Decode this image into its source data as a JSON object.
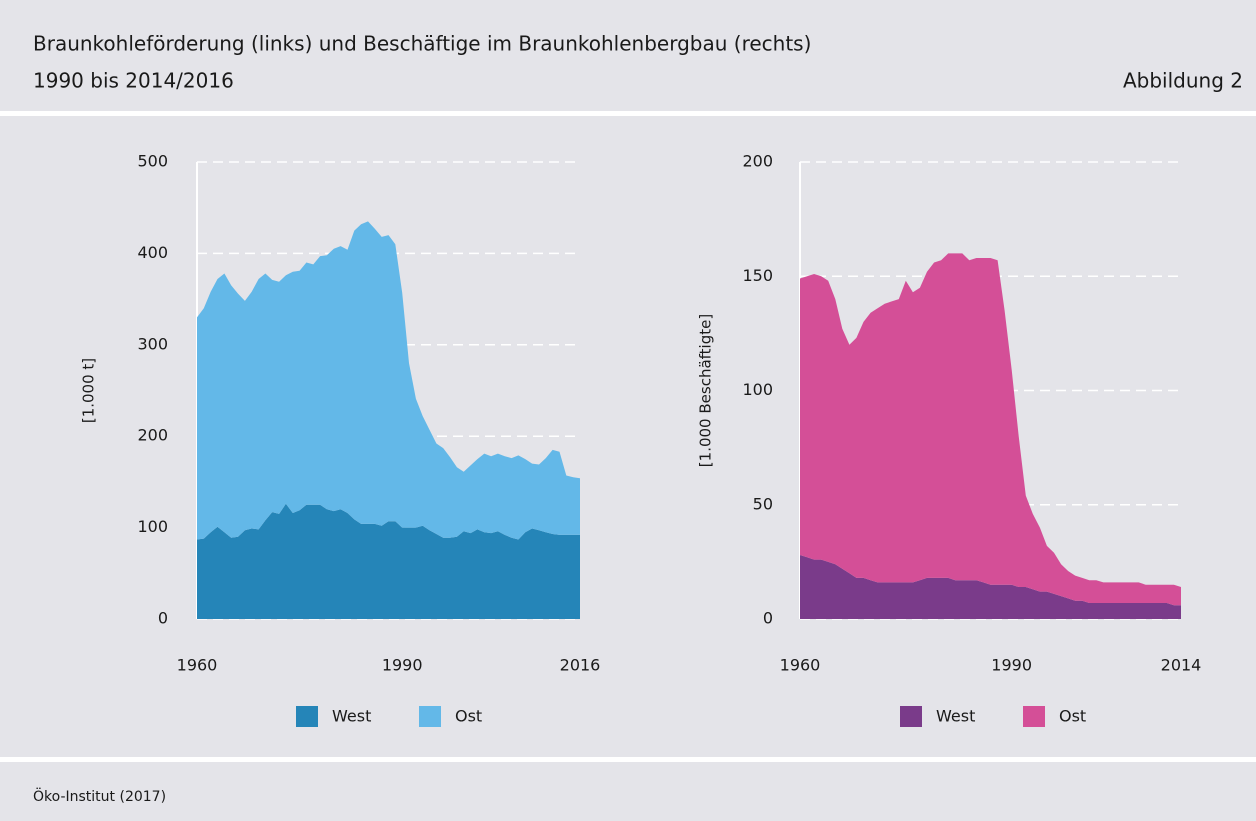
{
  "header": {
    "title": "Braunkohleförderung (links) und Beschäftige im Braunkohlenbergbau (rechts)",
    "subtitle": "1990 bis 2014/2016",
    "figure": "Abbildung 2"
  },
  "chart_data": [
    {
      "type": "stacked-area",
      "ylabel": "[1.000 t]",
      "x": [
        1960,
        1961,
        1962,
        1963,
        1964,
        1965,
        1966,
        1967,
        1968,
        1969,
        1970,
        1971,
        1972,
        1973,
        1974,
        1975,
        1976,
        1977,
        1978,
        1979,
        1980,
        1981,
        1982,
        1983,
        1984,
        1985,
        1986,
        1987,
        1988,
        1989,
        1990,
        1991,
        1992,
        1993,
        1994,
        1995,
        1996,
        1997,
        1998,
        1999,
        2000,
        2001,
        2002,
        2003,
        2004,
        2005,
        2006,
        2007,
        2008,
        2009,
        2010,
        2011,
        2012,
        2013,
        2014,
        2015,
        2016
      ],
      "series": [
        {
          "name": "West",
          "color": "#2585b8",
          "values": [
            87,
            88,
            95,
            101,
            95,
            89,
            90,
            97,
            99,
            98,
            108,
            117,
            115,
            126,
            116,
            119,
            125,
            125,
            125,
            120,
            118,
            120,
            116,
            109,
            104,
            104,
            104,
            102,
            107,
            107,
            100,
            100,
            100,
            102,
            97,
            93,
            89,
            89,
            90,
            96,
            94,
            98,
            95,
            94,
            96,
            92,
            89,
            87,
            95,
            99,
            97,
            95,
            93,
            92,
            92,
            92,
            92
          ]
        },
        {
          "name": "Ost",
          "color": "#63b8e8",
          "values": [
            243,
            252,
            263,
            271,
            283,
            276,
            266,
            251,
            259,
            274,
            270,
            254,
            254,
            250,
            264,
            262,
            265,
            263,
            272,
            278,
            287,
            288,
            288,
            316,
            328,
            331,
            323,
            316,
            313,
            303,
            257,
            180,
            141,
            120,
            110,
            99,
            98,
            88,
            76,
            65,
            74,
            77,
            86,
            84,
            85,
            86,
            87,
            92,
            80,
            71,
            72,
            81,
            92,
            91,
            65,
            63,
            62
          ]
        }
      ],
      "xlim": [
        1960,
        2016
      ],
      "xticks": [
        1960,
        1990,
        2016
      ],
      "ylim": [
        0,
        500
      ],
      "yticks": [
        0,
        100,
        200,
        300,
        400,
        500
      ],
      "grid": true
    },
    {
      "type": "stacked-area",
      "ylabel": "[1.000 Beschäftigte]",
      "x": [
        1960,
        1961,
        1962,
        1963,
        1964,
        1965,
        1966,
        1967,
        1968,
        1969,
        1970,
        1971,
        1972,
        1973,
        1974,
        1975,
        1976,
        1977,
        1978,
        1979,
        1980,
        1981,
        1982,
        1983,
        1984,
        1985,
        1986,
        1987,
        1988,
        1989,
        1990,
        1991,
        1992,
        1993,
        1994,
        1995,
        1996,
        1997,
        1998,
        1999,
        2000,
        2001,
        2002,
        2003,
        2004,
        2005,
        2006,
        2007,
        2008,
        2009,
        2010,
        2011,
        2012,
        2013,
        2014
      ],
      "series": [
        {
          "name": "West",
          "color": "#7a3b8a",
          "values": [
            28,
            27,
            26,
            26,
            25,
            24,
            22,
            20,
            18,
            18,
            17,
            16,
            16,
            16,
            16,
            16,
            16,
            17,
            18,
            18,
            18,
            18,
            17,
            17,
            17,
            17,
            16,
            15,
            15,
            15,
            15,
            14,
            14,
            13,
            12,
            12,
            11,
            10,
            9,
            8,
            8,
            7,
            7,
            7,
            7,
            7,
            7,
            7,
            7,
            7,
            7,
            7,
            7,
            6,
            6
          ]
        },
        {
          "name": "Ost",
          "color": "#d44f97",
          "values": [
            121,
            123,
            125,
            124,
            123,
            116,
            105,
            100,
            105,
            112,
            117,
            120,
            122,
            123,
            124,
            132,
            127,
            128,
            134,
            138,
            139,
            142,
            143,
            143,
            140,
            141,
            142,
            143,
            142,
            120,
            94,
            66,
            40,
            33,
            28,
            20,
            18,
            14,
            12,
            11,
            10,
            10,
            10,
            9,
            9,
            9,
            9,
            9,
            9,
            8,
            8,
            8,
            8,
            9,
            8
          ]
        }
      ],
      "xlim": [
        1960,
        2014
      ],
      "xticks": [
        1960,
        1990,
        2014
      ],
      "ylim": [
        0,
        200
      ],
      "yticks": [
        0,
        50,
        100,
        150,
        200
      ],
      "grid": true
    }
  ],
  "source": "Öko-Institut (2017)"
}
